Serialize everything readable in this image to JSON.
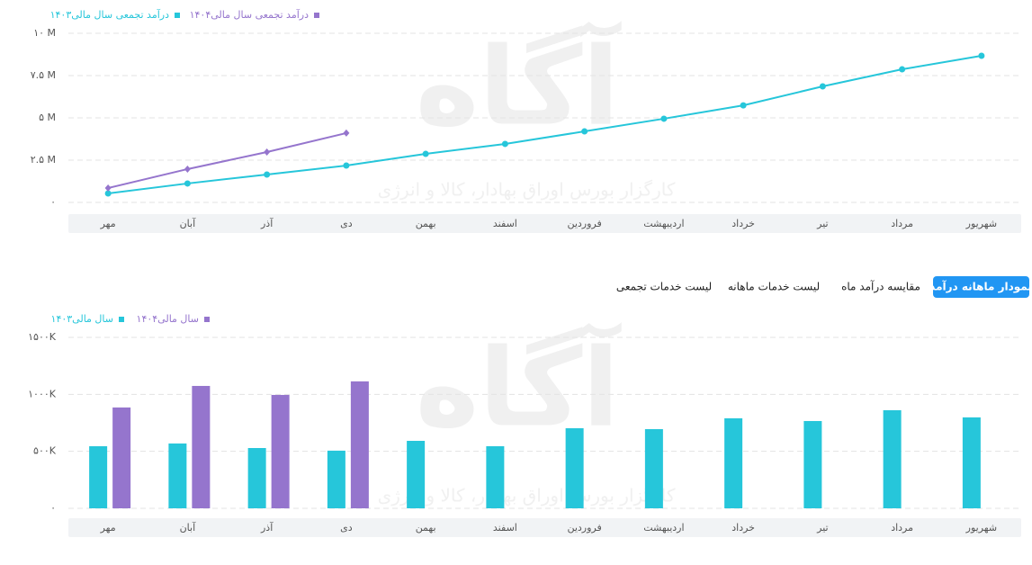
{
  "tabs": {
    "items": [
      "نمودار ماهانه درآمد",
      "مقایسه درآمد ماه",
      "لیست خدمات ماهانه",
      "لیست خدمات تجمعی"
    ],
    "active": 0
  },
  "watermark": {
    "logo": "آگاه",
    "text": "کارگزار بورس اوراق بهادار، کالا و انرژی"
  },
  "chart_data": [
    {
      "type": "line",
      "categories": [
        "مهر",
        "آبان",
        "آذر",
        "دی",
        "بهمن",
        "اسفند",
        "فروردین",
        "اردیبهشت",
        "خرداد",
        "تیر",
        "مرداد",
        "شهریور"
      ],
      "series": [
        {
          "name": "درآمد تجمعی سال مالی۱۴۰۳",
          "color": "#26c6da",
          "values": [
            0.53,
            1.12,
            1.65,
            2.18,
            2.87,
            3.46,
            4.2,
            4.95,
            5.74,
            6.86,
            7.87,
            8.67
          ]
        },
        {
          "name": "درآمد تجمعی سال مالی۱۴۰۴",
          "color": "#9575cd",
          "values": [
            0.85,
            1.97,
            2.98,
            4.1,
            null,
            null,
            null,
            null,
            null,
            null,
            null,
            null
          ]
        }
      ],
      "ylim": [
        0,
        10
      ],
      "yticks": [
        {
          "value": 0,
          "label": "۰"
        },
        {
          "value": 2.5,
          "label": "۲.۵ M"
        },
        {
          "value": 5,
          "label": "۵ M"
        },
        {
          "value": 7.5,
          "label": "۷.۵ M"
        },
        {
          "value": 10,
          "label": "۱۰ M"
        }
      ],
      "grid": true,
      "legend": "top-left"
    },
    {
      "type": "bar",
      "categories": [
        "مهر",
        "آبان",
        "آذر",
        "دی",
        "بهمن",
        "اسفند",
        "فروردین",
        "اردیبهشت",
        "خرداد",
        "تیر",
        "مرداد",
        "شهریور"
      ],
      "series": [
        {
          "name": "سال مالی۱۴۰۳",
          "color": "#26c6da",
          "values": [
            545,
            569,
            529,
            506,
            592,
            545,
            703,
            695,
            790,
            766,
            861,
            798
          ]
        },
        {
          "name": "سال مالی۱۴۰۴",
          "color": "#9575cd",
          "values": [
            885,
            1074,
            995,
            1114,
            null,
            null,
            null,
            null,
            null,
            null,
            null,
            null
          ]
        }
      ],
      "ylim": [
        0,
        1500
      ],
      "yticks": [
        {
          "value": 0,
          "label": "۰"
        },
        {
          "value": 500,
          "label": "۵۰۰K"
        },
        {
          "value": 1000,
          "label": "۱۰۰۰K"
        },
        {
          "value": 1500,
          "label": "۱۵۰۰K"
        }
      ],
      "grid": true,
      "legend": "top-left"
    }
  ]
}
